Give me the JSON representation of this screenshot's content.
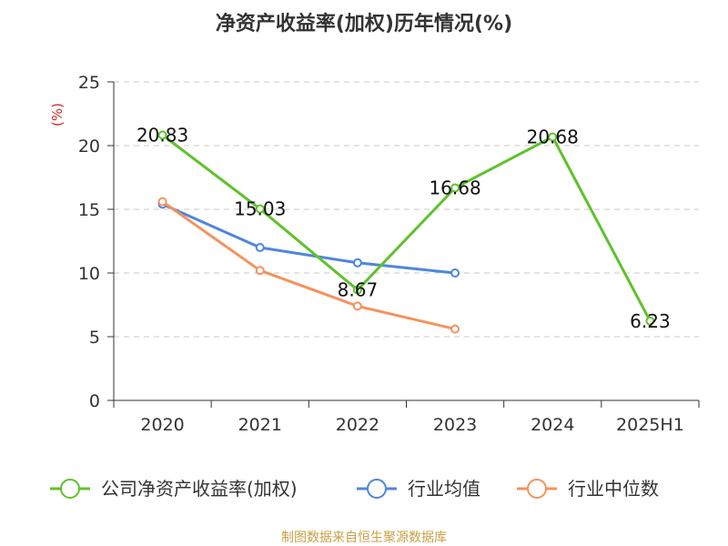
{
  "chart_data": {
    "type": "line",
    "title": "净资产收益率(加权)历年情况(%)",
    "y_unit": "(%)",
    "categories": [
      "2020",
      "2021",
      "2022",
      "2023",
      "2024",
      "2025H1"
    ],
    "ylim": [
      0,
      25
    ],
    "yticks": [
      0,
      5,
      10,
      15,
      20,
      25
    ],
    "grid": true,
    "legend_position": "bottom",
    "series": [
      {
        "name": "公司净资产收益率(加权)",
        "color": "#5ec22b",
        "values": [
          20.83,
          15.03,
          8.67,
          16.68,
          20.68,
          6.23
        ],
        "labels": [
          "20.83",
          "15.03",
          "8.67",
          "16.68",
          "20.68",
          "6.23"
        ]
      },
      {
        "name": "行业均值",
        "color": "#4e86dc",
        "values": [
          15.4,
          12.0,
          10.8,
          10.0,
          null,
          null
        ]
      },
      {
        "name": "行业中位数",
        "color": "#f5925d",
        "values": [
          15.6,
          10.2,
          7.4,
          5.6,
          null,
          null
        ]
      }
    ]
  },
  "source": "制图数据来自恒生聚源数据库"
}
